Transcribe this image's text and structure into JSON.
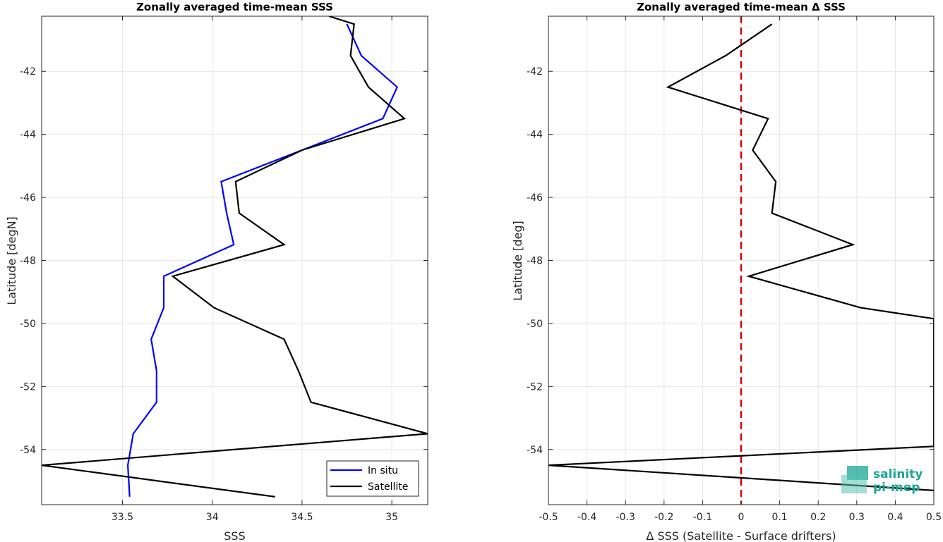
{
  "chart_data": [
    {
      "type": "line",
      "title": "Zonally averaged time-mean SSS",
      "xlabel": "SSS",
      "ylabel": "Latitude [degN]",
      "xlim": [
        33.05,
        35.2
      ],
      "ylim": [
        -55.75,
        -40.25
      ],
      "xticks": [
        33.5,
        34,
        34.5,
        35
      ],
      "yticks": [
        -54,
        -52,
        -50,
        -48,
        -46,
        -44,
        -42
      ],
      "grid": true,
      "legend_position": "bottom-right",
      "series": [
        {
          "name": "In situ",
          "color": "#0000ff",
          "x": [
            34.75,
            34.83,
            35.03,
            34.95,
            34.5,
            34.05,
            34.08,
            34.12,
            33.73,
            33.73,
            33.66,
            33.69,
            33.69,
            33.56,
            33.53,
            33.54
          ],
          "y": [
            -40.5,
            -41.5,
            -42.5,
            -43.5,
            -44.5,
            -45.5,
            -46.5,
            -47.5,
            -48.5,
            -49.5,
            -50.5,
            -51.5,
            -52.5,
            -53.5,
            -54.5,
            -55.5
          ]
        },
        {
          "name": "Satellite",
          "color": "#000000",
          "x": [
            34.65,
            34.79,
            34.77,
            34.87,
            35.07,
            34.5,
            34.13,
            34.15,
            34.4,
            33.78,
            34.01,
            34.4,
            34.48,
            34.55,
            35.2,
            33.05,
            34.35
          ],
          "y": [
            -40.25,
            -40.5,
            -41.5,
            -42.5,
            -43.5,
            -44.5,
            -45.5,
            -46.5,
            -47.5,
            -48.5,
            -49.5,
            -50.5,
            -51.5,
            -52.5,
            -53.5,
            -54.5,
            -55.5
          ]
        }
      ]
    },
    {
      "type": "line",
      "title": "Zonally averaged time-mean Δ SSS",
      "xlabel": "Δ SSS (Satellite - Surface drifters)",
      "ylabel": "Latitude [deg]",
      "xlim": [
        -0.5,
        0.5
      ],
      "ylim": [
        -55.75,
        -40.25
      ],
      "xticks": [
        -0.5,
        -0.4,
        -0.3,
        -0.2,
        -0.1,
        0,
        0.1,
        0.2,
        0.3,
        0.4,
        0.5
      ],
      "yticks": [
        -54,
        -52,
        -50,
        -48,
        -46,
        -44,
        -42
      ],
      "grid": true,
      "reference_line": {
        "x": 0,
        "color": "#e00000",
        "style": "dashed"
      },
      "series": [
        {
          "color": "#000000",
          "x": [
            0.08,
            -0.04,
            -0.19,
            0.07,
            0.03,
            0.09,
            0.08,
            0.29,
            0.02,
            0.31,
            0.5,
            0.5,
            -0.5,
            0.5
          ],
          "y": [
            -40.5,
            -41.5,
            -42.5,
            -43.5,
            -44.5,
            -45.5,
            -46.5,
            -47.5,
            -48.5,
            -49.5,
            -49.85,
            -53.9,
            -54.5,
            -55.3
          ]
        }
      ]
    }
  ],
  "logo": {
    "line1": "salinity",
    "line2": "pi-mep"
  }
}
